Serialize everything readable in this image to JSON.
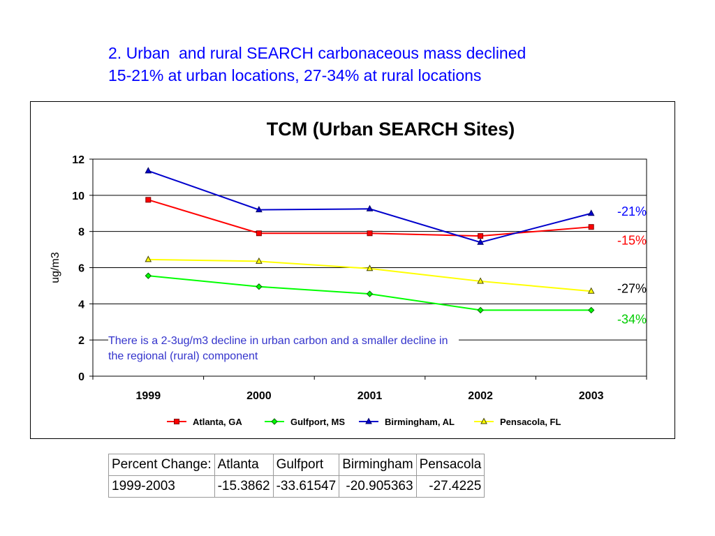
{
  "slide": {
    "title_lines": [
      "2. Urban  and rural SEARCH carbonaceous mass declined",
      "15-21% at urban locations, 27-34% at rural locations"
    ]
  },
  "chart_data": {
    "type": "line",
    "title": "TCM (Urban SEARCH Sites)",
    "ylabel": "ug/m3",
    "xlabel": "",
    "categories": [
      "1999",
      "2000",
      "2001",
      "2002",
      "2003"
    ],
    "ylim": [
      0,
      12
    ],
    "yticks": [
      0,
      2,
      4,
      6,
      8,
      10,
      12
    ],
    "grid": true,
    "legend_position": "bottom",
    "series": [
      {
        "name": "Atlanta, GA",
        "values": [
          9.75,
          7.9,
          7.9,
          7.75,
          8.25
        ],
        "color": "#ff0000",
        "marker": "square"
      },
      {
        "name": "Gulfport, MS",
        "values": [
          5.55,
          4.95,
          4.55,
          3.65,
          3.65
        ],
        "color": "#00ff00",
        "marker": "diamond"
      },
      {
        "name": "Birmingham, AL",
        "values": [
          11.35,
          9.2,
          9.25,
          7.4,
          9.0
        ],
        "color": "#0000cc",
        "marker": "triangle"
      },
      {
        "name": "Pensacola, FL",
        "values": [
          6.45,
          6.35,
          5.95,
          5.25,
          4.7
        ],
        "color": "#ffff00",
        "marker": "triangle"
      }
    ],
    "annotations": [
      {
        "text": "-21%",
        "y": 9.1,
        "color": "#0000ff"
      },
      {
        "text": "-15%",
        "y": 7.5,
        "color": "#ff0000"
      },
      {
        "text": "-27%",
        "y": 4.85,
        "color": "#000000"
      },
      {
        "text": "-34%",
        "y": 3.15,
        "color": "#00cc00"
      }
    ]
  },
  "note": {
    "text": "There is a 2-3ug/m3 decline in urban carbon and a smaller decline in the regional (rural) component"
  },
  "table": {
    "header": [
      "Percent Change:",
      "Atlanta",
      "Gulfport",
      "Birmingham",
      "Pensacola"
    ],
    "row": [
      "1999-2003",
      "-15.3862",
      "-33.61547",
      "-20.905363",
      "-27.4225"
    ]
  }
}
